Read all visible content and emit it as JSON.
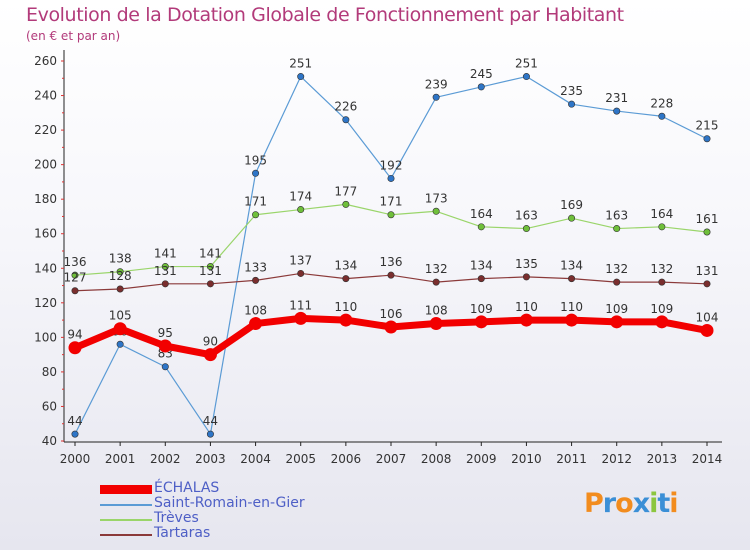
{
  "header": {
    "title": "Evolution de la Dotation Globale de Fonctionnement par Habitant",
    "subtitle": "(en € et par an)"
  },
  "brand": {
    "text": "Proxiti",
    "colors": [
      "#f28c1e",
      "#3b8fd6",
      "#f28c1e",
      "#3b8fd6",
      "#8cc63f",
      "#3b8fd6",
      "#f28c1e"
    ]
  },
  "chart_data": {
    "type": "line",
    "title": "Evolution de la Dotation Globale de Fonctionnement par Habitant",
    "subtitle": "(en € et par an)",
    "xlabel": "",
    "ylabel": "",
    "categories": [
      "2000",
      "2001",
      "2002",
      "2003",
      "2004",
      "2005",
      "2006",
      "2007",
      "2008",
      "2009",
      "2010",
      "2011",
      "2012",
      "2013",
      "2014"
    ],
    "ylim": [
      40,
      260
    ],
    "yticks": [
      40,
      60,
      80,
      100,
      120,
      140,
      160,
      180,
      200,
      220,
      240,
      260
    ],
    "grid": false,
    "legend_position": "bottom-left",
    "series": [
      {
        "name": "Saint-Romain-en-Gier",
        "color": "#5b9bd5",
        "marker": "#2e75c7",
        "width": 1.2,
        "values": [
          44,
          96,
          83,
          44,
          195,
          251,
          226,
          192,
          239,
          245,
          251,
          235,
          231,
          228,
          215
        ],
        "labels": [
          "44",
          "96",
          "83",
          "44",
          "195",
          "251",
          "226",
          "192",
          "239",
          "245",
          "251",
          "235",
          "231",
          "228",
          "215"
        ]
      },
      {
        "name": "Trèves",
        "color": "#9ad56a",
        "marker": "#6fbf3a",
        "width": 1.2,
        "values": [
          136,
          138,
          141,
          141,
          171,
          174,
          177,
          171,
          173,
          164,
          163,
          169,
          163,
          164,
          161
        ],
        "labels": [
          "136",
          "138",
          "141",
          "141",
          "171",
          "174",
          "177",
          "171",
          "173",
          "164",
          "163",
          "169",
          "163",
          "164",
          "161"
        ]
      },
      {
        "name": "Tartaras",
        "color": "#8b3a3a",
        "marker": "#7a2e2e",
        "width": 1.2,
        "values": [
          127,
          128,
          131,
          131,
          133,
          137,
          134,
          136,
          132,
          134,
          135,
          134,
          132,
          132,
          131
        ],
        "labels": [
          "127",
          "128",
          "131",
          "131",
          "133",
          "137",
          "134",
          "136",
          "132",
          "134",
          "135",
          "134",
          "132",
          "132",
          "131"
        ]
      },
      {
        "name": "ÉCHALAS",
        "color": "#f20000",
        "marker": "#f20000",
        "width": 7,
        "values": [
          94,
          105,
          95,
          90,
          108,
          111,
          110,
          106,
          108,
          109,
          110,
          110,
          109,
          109,
          104
        ],
        "labels": [
          "94",
          "105",
          "95",
          "90",
          "108",
          "111",
          "110",
          "106",
          "108",
          "109",
          "110",
          "110",
          "109",
          "109",
          "104"
        ]
      }
    ],
    "legend_order": [
      "ÉCHALAS",
      "Saint-Romain-en-Gier",
      "Trèves",
      "Tartaras"
    ]
  }
}
